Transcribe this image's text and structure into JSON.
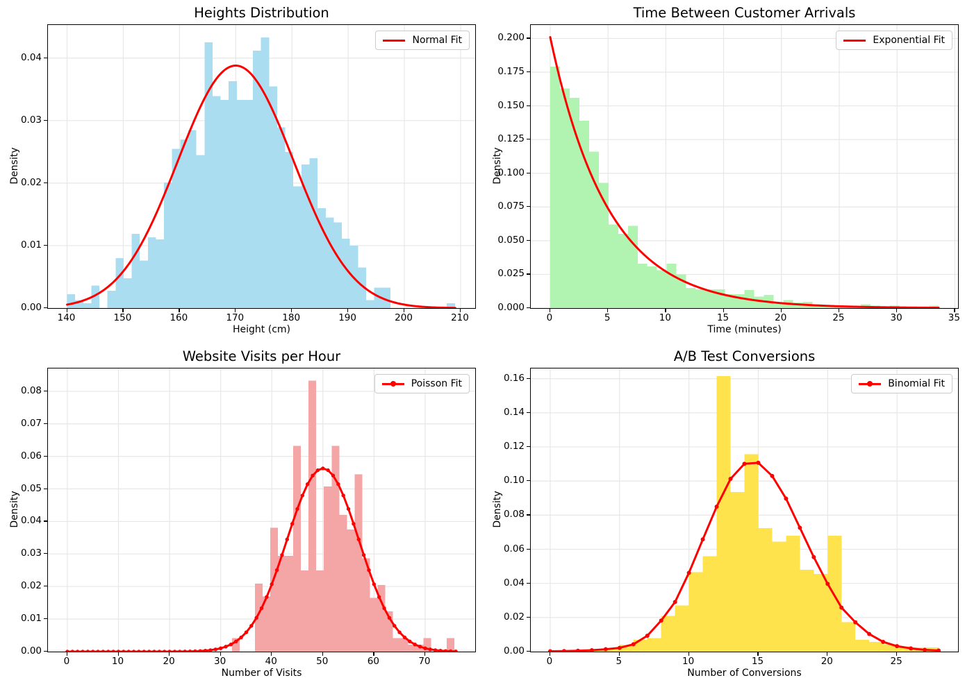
{
  "figure": {
    "background": "#ffffff",
    "grid_color": "#e7e7e7",
    "spine_color": "#000000",
    "fit_color": "#ff0000"
  },
  "chart_data": [
    {
      "type": "histogram",
      "title": "Heights Distribution",
      "xlabel": "Height (cm)",
      "ylabel": "Density",
      "legend_label": "Normal Fit",
      "legend_marker": false,
      "legend_position": "upper right",
      "grid": true,
      "bar_color": "#abddf1",
      "bar_color_name": "skyblue",
      "xlim": [
        136.6,
        212.6
      ],
      "ylim": [
        0,
        0.0453
      ],
      "xticks": {
        "values": [
          140,
          150,
          160,
          170,
          180,
          190,
          200,
          210
        ],
        "labels": [
          "140",
          "150",
          "160",
          "170",
          "180",
          "190",
          "200",
          "210"
        ]
      },
      "yticks": {
        "values": [
          0,
          0.01,
          0.02,
          0.03,
          0.04
        ],
        "labels": [
          "0.00",
          "0.01",
          "0.02",
          "0.03",
          "0.04"
        ]
      },
      "histogram": {
        "bin_start": 140,
        "bin_width": 1.4375,
        "densities": [
          0.0022,
          0.0013,
          0.0008,
          0.0036,
          0,
          0.0028,
          0.008,
          0.0048,
          0.0119,
          0.0076,
          0.0113,
          0.011,
          0.0201,
          0.0255,
          0.027,
          0.0285,
          0.0245,
          0.0425,
          0.0339,
          0.0333,
          0.0363,
          0.0333,
          0.0333,
          0.0412,
          0.0433,
          0.0355,
          0.0289,
          0.025,
          0.0195,
          0.023,
          0.024,
          0.016,
          0.0145,
          0.0137,
          0.0111,
          0.01,
          0.0065,
          0.0013,
          0.0033,
          0.0033,
          0,
          0,
          0,
          0,
          0,
          0,
          0,
          0.0008
        ]
      },
      "fit": {
        "kind": "normal",
        "mean": 170,
        "sd": 10.3,
        "peak": 0.0388,
        "x_start": 140,
        "x_end": 209.05,
        "markers": false
      }
    },
    {
      "type": "histogram",
      "title": "Time Between Customer Arrivals",
      "xlabel": "Time (minutes)",
      "ylabel": "Density",
      "legend_label": "Exponential Fit",
      "legend_marker": false,
      "legend_position": "upper right",
      "grid": true,
      "bar_color": "#b1f3b1",
      "bar_color_name": "lightgreen",
      "xlim": [
        -1.68,
        35.28
      ],
      "ylim": [
        0,
        0.21
      ],
      "xticks": {
        "values": [
          0,
          5,
          10,
          15,
          20,
          25,
          30,
          35
        ],
        "labels": [
          "0",
          "5",
          "10",
          "15",
          "20",
          "25",
          "30",
          "35"
        ]
      },
      "yticks": {
        "values": [
          0,
          0.025,
          0.05,
          0.075,
          0.1,
          0.125,
          0.15,
          0.175,
          0.2
        ],
        "labels": [
          "0.000",
          "0.025",
          "0.050",
          "0.075",
          "0.100",
          "0.125",
          "0.150",
          "0.175",
          "0.200"
        ]
      },
      "histogram": {
        "bin_start": 0,
        "bin_width": 0.84,
        "densities": [
          0.179,
          0.163,
          0.156,
          0.139,
          0.116,
          0.093,
          0.062,
          0.055,
          0.061,
          0.033,
          0.031,
          0.028,
          0.033,
          0.025,
          0.015,
          0.014,
          0.014,
          0.014,
          0.0102,
          0.0102,
          0.0133,
          0.0084,
          0.0097,
          0.003,
          0.006,
          0.0042,
          0.0047,
          0.0028,
          0.0019,
          0.0019,
          0.0009,
          0.0009,
          0.0028,
          0.0019,
          0.0009,
          0.0019,
          0.0009,
          0.0009,
          0.0009,
          0.0019
        ]
      },
      "fit": {
        "kind": "exponential",
        "amplitude": 0.201,
        "rate": 0.2,
        "x_start": 0,
        "x_end": 33.6,
        "markers": false
      }
    },
    {
      "type": "histogram",
      "title": "Website Visits per Hour",
      "xlabel": "Number of Visits",
      "ylabel": "Density",
      "legend_label": "Poisson Fit",
      "legend_marker": true,
      "legend_position": "upper right",
      "grid": true,
      "bar_color": "#f4a6a6",
      "bar_color_name": "lightcoral",
      "xlim": [
        -3.8,
        79.8
      ],
      "ylim": [
        0,
        0.087
      ],
      "xticks": {
        "values": [
          0,
          10,
          20,
          30,
          40,
          50,
          60,
          70
        ],
        "labels": [
          "0",
          "10",
          "20",
          "30",
          "40",
          "50",
          "60",
          "70"
        ]
      },
      "yticks": {
        "values": [
          0,
          0.01,
          0.02,
          0.03,
          0.04,
          0.05,
          0.06,
          0.07,
          0.08
        ],
        "labels": [
          "0.00",
          "0.01",
          "0.02",
          "0.03",
          "0.04",
          "0.05",
          "0.06",
          "0.07",
          "0.08"
        ]
      },
      "histogram": {
        "bin_start": 32.2,
        "bin_width": 1.5,
        "densities": [
          0.0042,
          0,
          0,
          0.0209,
          0.0169,
          0.0381,
          0.0294,
          0.0294,
          0.0632,
          0.025,
          0.0833,
          0.025,
          0.0507,
          0.0632,
          0.042,
          0.0375,
          0.0545,
          0.0287,
          0.0165,
          0.0205,
          0.0124,
          0.0042,
          0.0042,
          0.0021,
          0.0021,
          0.0042,
          0,
          0,
          0.0042,
          0
        ]
      },
      "fit": {
        "kind": "normal",
        "mean": 50,
        "sd": 7.07,
        "peak": 0.0563,
        "x_start": 0,
        "x_end": 76,
        "markers": true,
        "marker_step": 1,
        "marker_radius": 2.7
      }
    },
    {
      "type": "histogram",
      "title": "A/B Test Conversions",
      "xlabel": "Number of Conversions",
      "ylabel": "Density",
      "legend_label": "Binomial Fit",
      "legend_marker": true,
      "legend_position": "upper right",
      "grid": true,
      "bar_color": "#ffe34c",
      "bar_color_name": "gold",
      "xlim": [
        -1.4,
        29.4
      ],
      "ylim": [
        0,
        0.166
      ],
      "xticks": {
        "values": [
          0,
          5,
          10,
          15,
          20,
          25
        ],
        "labels": [
          "0",
          "5",
          "10",
          "15",
          "20",
          "25"
        ]
      },
      "yticks": {
        "values": [
          0,
          0.02,
          0.04,
          0.06,
          0.08,
          0.1,
          0.12,
          0.14,
          0.16
        ],
        "labels": [
          "0.00",
          "0.02",
          "0.04",
          "0.06",
          "0.08",
          "0.10",
          "0.12",
          "0.14",
          "0.16"
        ]
      },
      "histogram": {
        "bin_start": 0,
        "bin_width": 1,
        "densities": [
          0,
          0,
          0.001,
          0.001,
          0.0016,
          0.004,
          0.007,
          0.008,
          0.021,
          0.027,
          0.0466,
          0.056,
          0.1615,
          0.0935,
          0.1157,
          0.0724,
          0.0645,
          0.068,
          0.048,
          0.0455,
          0.068,
          0.0172,
          0.007,
          0.0057,
          0.0043,
          0.003,
          0.0025,
          0.0025
        ]
      },
      "fit": {
        "kind": "points",
        "markers": true,
        "marker_radius": 3,
        "x": [
          0,
          1,
          2,
          3,
          4,
          5,
          6,
          7,
          8,
          9,
          10,
          11,
          12,
          13,
          14,
          15,
          16,
          17,
          18,
          19,
          20,
          21,
          22,
          23,
          24,
          25,
          26,
          27,
          28
        ],
        "y": [
          0.0002,
          0.0003,
          0.0005,
          0.0008,
          0.0014,
          0.0022,
          0.0043,
          0.0093,
          0.0182,
          0.0291,
          0.0462,
          0.0658,
          0.085,
          0.1013,
          0.1101,
          0.1107,
          0.103,
          0.0897,
          0.0726,
          0.0554,
          0.0397,
          0.0258,
          0.0172,
          0.0103,
          0.0057,
          0.0032,
          0.0019,
          0.001,
          0.0006
        ]
      }
    }
  ]
}
